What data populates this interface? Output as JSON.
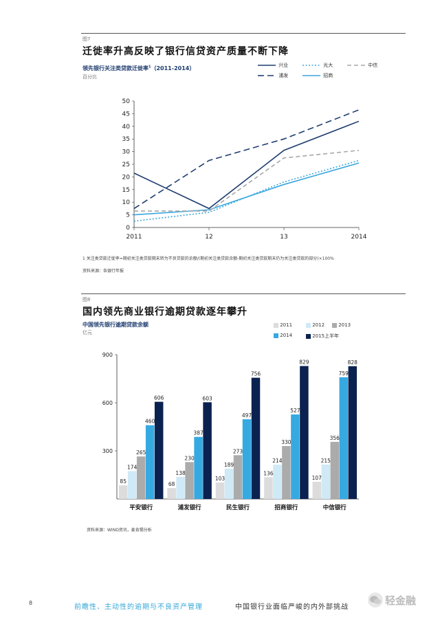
{
  "figure7": {
    "number": "图7",
    "title": "迁徙率升高反映了银行信贷资产质量不断下降",
    "subtitle": "领先银行关注类贷款迁徙率",
    "subtitle_sup": "1",
    "subtitle_years": "（2011-2014）",
    "unit": "百分比",
    "footnote": "1 关注类贷款迁徙率=期初关注类贷款期末转为不良贷款的余额/(期初关注类贷款余额-期初关注类贷款期末仍为关注类贷款的部分)×100%",
    "source": "资料来源：各银行年报"
  },
  "figure8": {
    "number": "图8",
    "title": "国内领先商业银行逾期贷款逐年攀升",
    "subtitle": "中国领先银行逾期贷款余额",
    "unit": "亿元",
    "source": "资料来源：WIND资讯，麦肯锡分析"
  },
  "chart_data": [
    {
      "type": "line",
      "x": [
        "2011",
        "12",
        "13",
        "2014"
      ],
      "ylim": [
        0,
        50
      ],
      "yticks": [
        "0",
        "5",
        "10",
        "15",
        "20",
        "25",
        "30",
        "35",
        "40",
        "45",
        "50"
      ],
      "legend_placement": "top-right",
      "series": [
        {
          "name": "兴业",
          "values": [
            21.5,
            7.5,
            30.5,
            42
          ],
          "color": "#1d3b6e",
          "dash": "solid"
        },
        {
          "name": "浦发",
          "values": [
            7.5,
            26.5,
            35,
            46.5
          ],
          "color": "#1d3b6e",
          "dash": "long"
        },
        {
          "name": "光大",
          "values": [
            2.5,
            6,
            18,
            26.5
          ],
          "color": "#3aa6dd",
          "dash": "dot"
        },
        {
          "name": "招商",
          "values": [
            5,
            7,
            17,
            25.5
          ],
          "color": "#3aa6dd",
          "dash": "solid"
        },
        {
          "name": "中信",
          "values": [
            6.5,
            6.5,
            27.5,
            30.5
          ],
          "color": "#a6a6a6",
          "dash": "dash"
        }
      ]
    },
    {
      "type": "bar",
      "categories": [
        "平安银行",
        "浦发银行",
        "民生银行",
        "招商银行",
        "中信银行"
      ],
      "ylim": [
        0,
        900
      ],
      "yticks": [
        "300",
        "600",
        "900"
      ],
      "legend_placement": "top-right",
      "series": [
        {
          "name": "2011",
          "values": [
            85,
            68,
            103,
            136,
            107
          ],
          "color": "#dcdcdc"
        },
        {
          "name": "2012",
          "values": [
            174,
            138,
            189,
            214,
            215
          ],
          "color": "#cfe9f7"
        },
        {
          "name": "2013",
          "values": [
            265,
            230,
            273,
            330,
            356
          ],
          "color": "#ababab"
        },
        {
          "name": "2014",
          "values": [
            460,
            387,
            497,
            527,
            759
          ],
          "color": "#36a9e1"
        },
        {
          "name": "2015上半年",
          "values": [
            606,
            603,
            756,
            829,
            828
          ],
          "color": "#0b2250"
        }
      ]
    }
  ],
  "footer": {
    "page_number": "8",
    "left_text": "前瞻性、主动性的逾期与不良资产管理",
    "right_text": "中国银行业面临严峻的内外部挑战",
    "watermark": "轻金融"
  }
}
